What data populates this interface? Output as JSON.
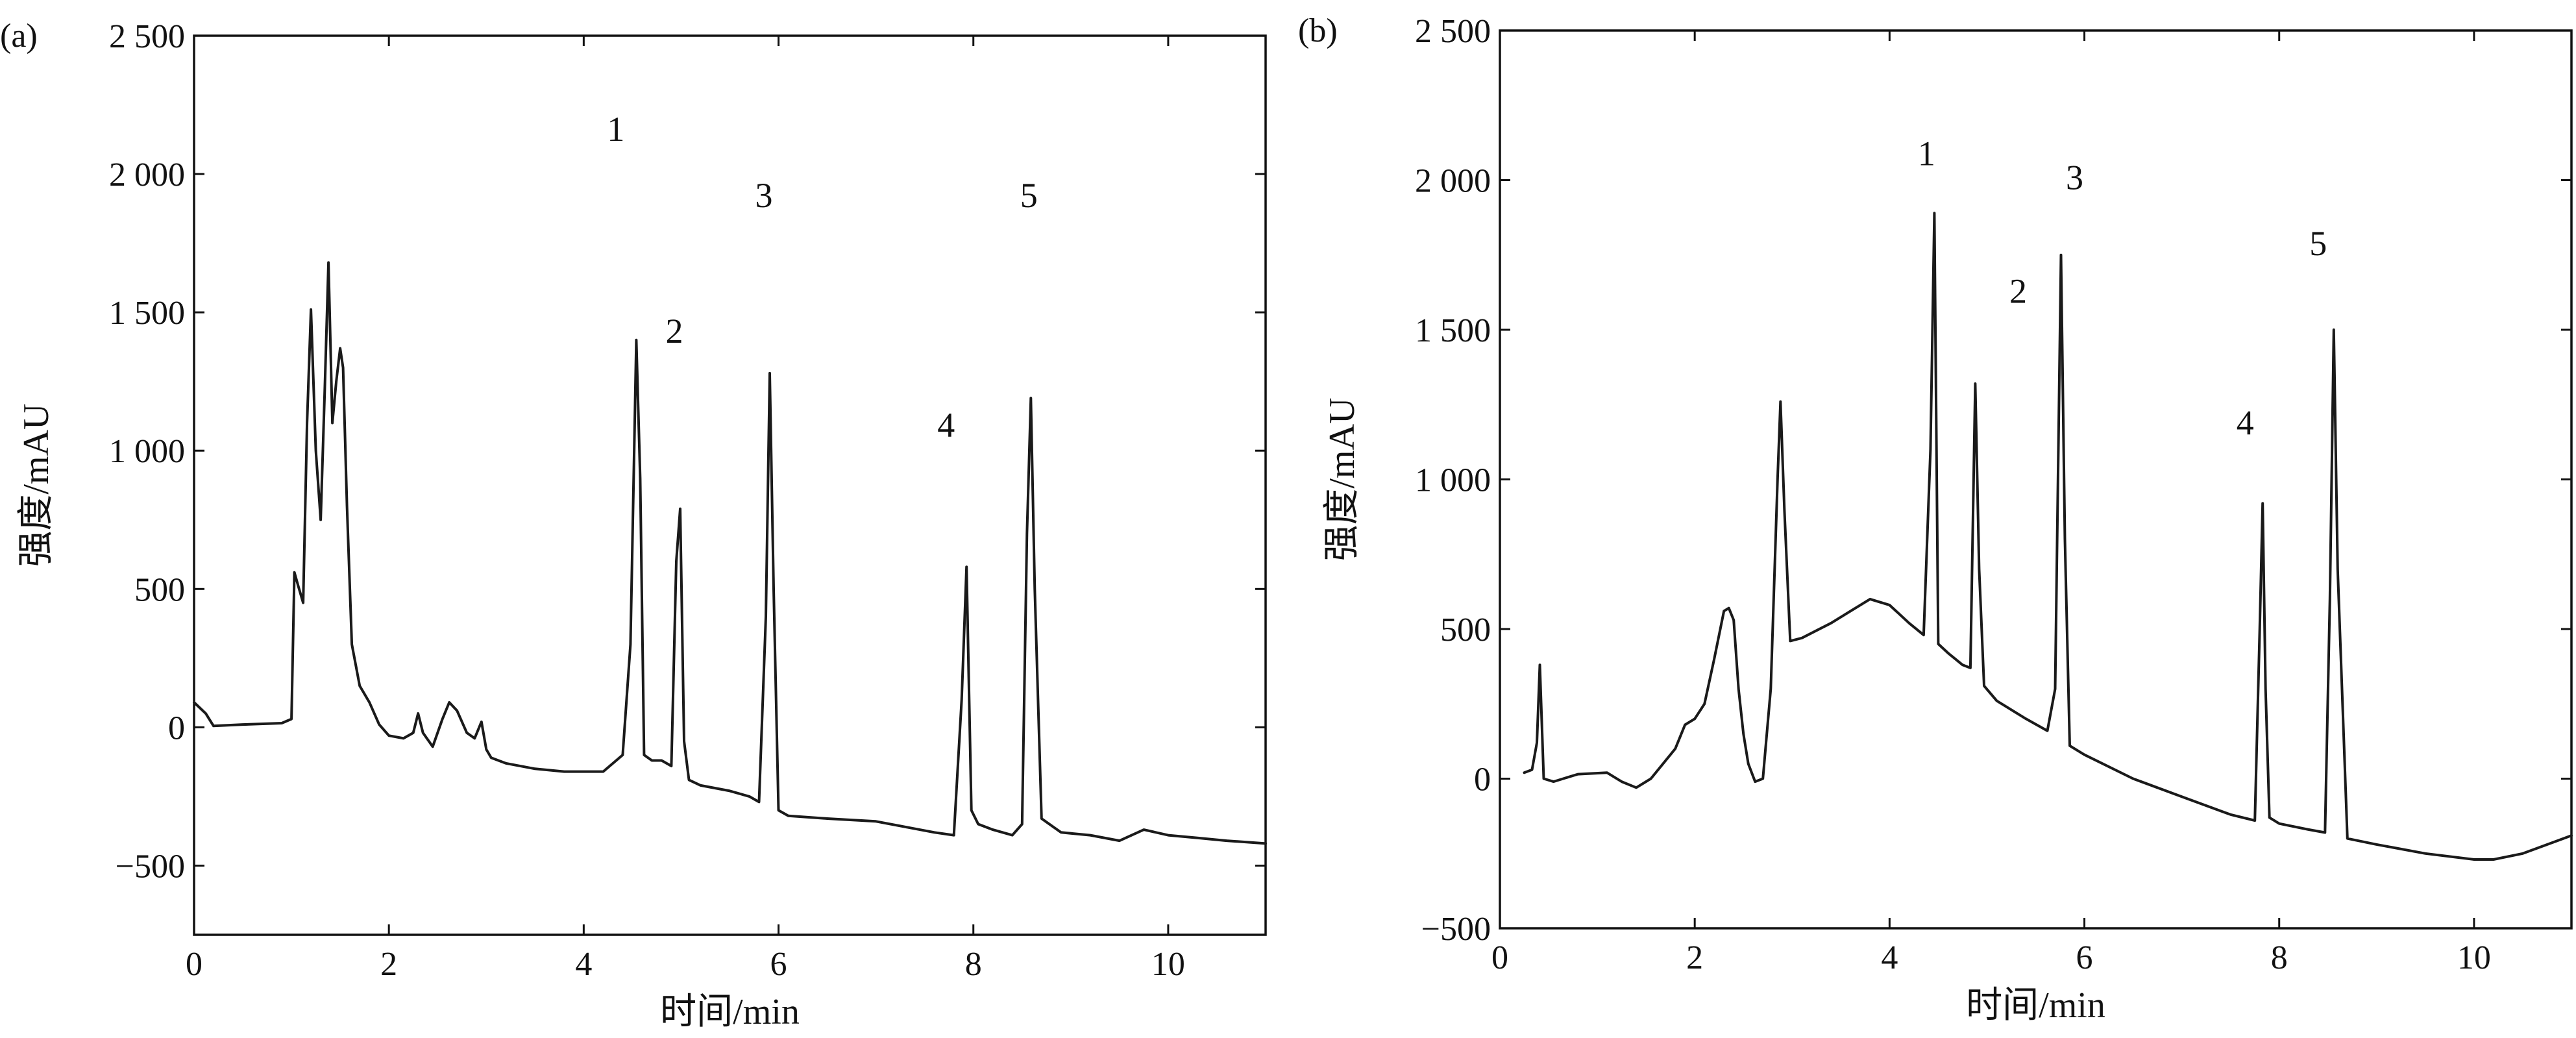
{
  "chart_data": [
    {
      "type": "line",
      "panel_tag": "(a)",
      "title": "",
      "xlabel": "时间/min",
      "ylabel": "强度/mAU",
      "xlim": [
        0,
        11
      ],
      "ylim": [
        -750,
        2500
      ],
      "x_ticks": [
        0,
        2,
        4,
        6,
        8,
        10
      ],
      "x_tick_labels": [
        "0",
        "2",
        "4",
        "6",
        "8",
        "10"
      ],
      "y_ticks": [
        -500,
        0,
        500,
        1000,
        1500,
        2000,
        2500
      ],
      "y_tick_labels": [
        "−500",
        "0",
        "500",
        "1 000",
        "1 500",
        "2 000",
        "2 500"
      ],
      "grid": false,
      "peak_labels": [
        {
          "text": "1",
          "x": 4.33,
          "y": 2120
        },
        {
          "text": "2",
          "x": 4.93,
          "y": 1390
        },
        {
          "text": "3",
          "x": 5.85,
          "y": 1880
        },
        {
          "text": "4",
          "x": 7.72,
          "y": 1050
        },
        {
          "text": "5",
          "x": 8.57,
          "y": 1880
        }
      ],
      "series": [
        {
          "x": [
            0,
            0.12,
            0.2,
            0.5,
            0.9,
            1.0,
            1.03,
            1.07,
            1.12,
            1.16,
            1.2,
            1.25,
            1.3,
            1.34,
            1.38,
            1.42,
            1.46,
            1.5,
            1.53,
            1.57,
            1.62,
            1.7,
            1.8,
            1.9,
            2.0,
            2.15,
            2.25,
            2.3,
            2.35,
            2.45,
            2.55,
            2.62,
            2.7,
            2.8,
            2.88,
            2.95,
            3.0,
            3.05,
            3.2,
            3.5,
            3.8,
            4.2,
            4.4,
            4.48,
            4.54,
            4.58,
            4.62,
            4.7,
            4.8,
            4.9,
            4.95,
            4.99,
            5.03,
            5.08,
            5.2,
            5.5,
            5.7,
            5.8,
            5.87,
            5.91,
            5.95,
            6.0,
            6.1,
            6.5,
            7.0,
            7.3,
            7.6,
            7.8,
            7.88,
            7.93,
            7.98,
            8.05,
            8.2,
            8.4,
            8.5,
            8.55,
            8.59,
            8.63,
            8.7,
            8.9,
            9.2,
            9.5,
            9.75,
            10.0,
            10.3,
            10.6,
            11.0
          ],
          "y": [
            90,
            50,
            5,
            10,
            15,
            30,
            560,
            510,
            450,
            1100,
            1510,
            1000,
            750,
            1200,
            1680,
            1100,
            1250,
            1370,
            1300,
            800,
            300,
            150,
            90,
            10,
            -30,
            -40,
            -20,
            50,
            -20,
            -70,
            30,
            90,
            60,
            -20,
            -40,
            20,
            -80,
            -110,
            -130,
            -150,
            -160,
            -160,
            -100,
            300,
            1400,
            900,
            -100,
            -120,
            -120,
            -140,
            600,
            790,
            -50,
            -190,
            -210,
            -230,
            -250,
            -270,
            400,
            1280,
            500,
            -300,
            -320,
            -330,
            -340,
            -360,
            -380,
            -390,
            100,
            580,
            -300,
            -350,
            -370,
            -390,
            -350,
            700,
            1190,
            500,
            -330,
            -380,
            -390,
            -410,
            -370,
            -390,
            -400,
            -410,
            -420
          ]
        }
      ]
    },
    {
      "type": "line",
      "panel_tag": "(b)",
      "title": "",
      "xlabel": "时间/min",
      "ylabel": "强度/mAU",
      "xlim": [
        0,
        11
      ],
      "ylim": [
        -500,
        2500
      ],
      "x_ticks": [
        0,
        2,
        4,
        6,
        8,
        10
      ],
      "x_tick_labels": [
        "0",
        "2",
        "4",
        "6",
        "8",
        "10"
      ],
      "y_ticks": [
        -500,
        0,
        500,
        1000,
        1500,
        2000,
        2500
      ],
      "y_tick_labels": [
        "−500",
        "0",
        "500",
        "1 000",
        "1 500",
        "2 000",
        "2 500"
      ],
      "grid": false,
      "peak_labels": [
        {
          "text": "1",
          "x": 4.38,
          "y": 2050
        },
        {
          "text": "2",
          "x": 5.32,
          "y": 1590
        },
        {
          "text": "3",
          "x": 5.9,
          "y": 1970
        },
        {
          "text": "4",
          "x": 7.65,
          "y": 1150
        },
        {
          "text": "5",
          "x": 8.4,
          "y": 1750
        }
      ],
      "series": [
        {
          "x": [
            0.25,
            0.33,
            0.38,
            0.41,
            0.45,
            0.55,
            0.8,
            1.1,
            1.25,
            1.4,
            1.55,
            1.8,
            1.9,
            2.0,
            2.1,
            2.2,
            2.3,
            2.35,
            2.4,
            2.45,
            2.5,
            2.55,
            2.62,
            2.7,
            2.78,
            2.85,
            2.88,
            2.92,
            2.98,
            3.1,
            3.4,
            3.6,
            3.8,
            4.0,
            4.2,
            4.35,
            4.42,
            4.46,
            4.5,
            4.6,
            4.75,
            4.83,
            4.88,
            4.92,
            4.97,
            5.1,
            5.4,
            5.62,
            5.7,
            5.76,
            5.8,
            5.85,
            6.0,
            6.5,
            7.0,
            7.5,
            7.75,
            7.8,
            7.83,
            7.86,
            7.9,
            8.0,
            8.3,
            8.47,
            8.52,
            8.56,
            8.6,
            8.7,
            9.0,
            9.5,
            10.0,
            10.2,
            10.5,
            11.0
          ],
          "y": [
            20,
            30,
            120,
            380,
            0,
            -10,
            15,
            20,
            -10,
            -30,
            0,
            100,
            180,
            200,
            250,
            400,
            560,
            570,
            530,
            300,
            150,
            50,
            -10,
            0,
            300,
            1000,
            1260,
            900,
            460,
            470,
            520,
            560,
            600,
            580,
            520,
            480,
            1100,
            1890,
            450,
            420,
            380,
            370,
            1320,
            700,
            310,
            260,
            200,
            160,
            300,
            1750,
            800,
            110,
            80,
            0,
            -60,
            -120,
            -140,
            500,
            920,
            300,
            -130,
            -150,
            -170,
            -180,
            600,
            1500,
            700,
            -200,
            -220,
            -250,
            -270,
            -270,
            -250,
            -190
          ]
        }
      ]
    }
  ]
}
